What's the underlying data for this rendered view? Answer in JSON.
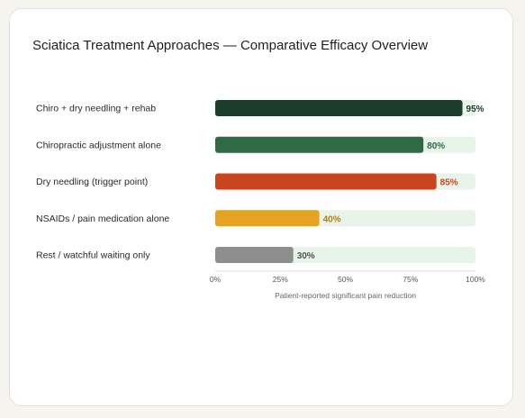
{
  "chart_data": {
    "type": "bar",
    "orientation": "horizontal",
    "title": "Sciatica Treatment Approaches — Comparative Efficacy Overview",
    "xlabel": "Patient-reported significant pain reduction",
    "xlim": [
      0,
      100
    ],
    "xticks": [
      0,
      25,
      50,
      75,
      100
    ],
    "xtick_labels": [
      "0%",
      "25%",
      "50%",
      "75%",
      "100%"
    ],
    "track_color": "#e8f3ea",
    "grid": false,
    "categories": [
      "Chiro + dry needling + rehab",
      "Chiropractic adjustment alone",
      "Dry needling (trigger point)",
      "NSAIDs / pain medication alone",
      "Rest / watchful waiting only"
    ],
    "values": [
      95,
      80,
      85,
      40,
      30
    ],
    "value_labels": [
      "95%",
      "80%",
      "85%",
      "40%",
      "30%"
    ],
    "colors": [
      "#1d3d2b",
      "#2f6a45",
      "#c8451d",
      "#e6a221",
      "#8e8e8e"
    ],
    "label_colors": [
      "#1d3d2b",
      "#2f6a45",
      "#c8451d",
      "#b07d10",
      "#555555"
    ]
  }
}
